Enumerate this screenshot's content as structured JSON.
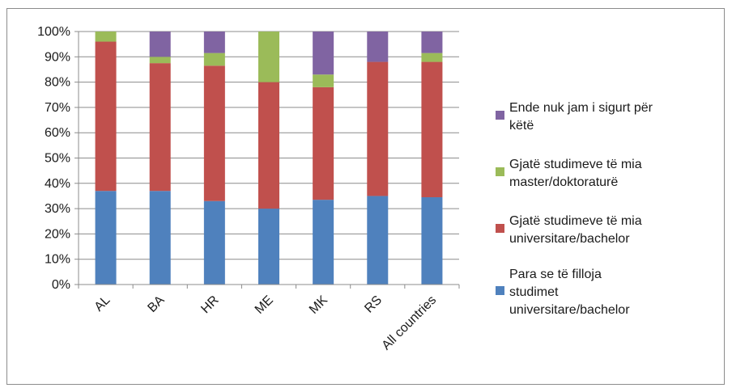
{
  "chart_data": {
    "type": "bar",
    "stacked": true,
    "percent": true,
    "categories": [
      "AL",
      "BA",
      "HR",
      "ME",
      "MK",
      "RS",
      "All countries"
    ],
    "series": [
      {
        "name": "Para se të filloja studimet universitare/bachelor",
        "color": "#4f81bd",
        "values": [
          37,
          37,
          33,
          30,
          33.5,
          35,
          34.5
        ]
      },
      {
        "name": "Gjatë studimeve të mia universitare/bachelor",
        "color": "#c0504d",
        "values": [
          59,
          50.5,
          53.5,
          50,
          44.5,
          53,
          53.5
        ]
      },
      {
        "name": "Gjatë studimeve të mia master/doktoraturë",
        "color": "#9bbb59",
        "values": [
          4,
          2.5,
          5,
          20,
          5,
          0,
          3.5
        ]
      },
      {
        "name": "Ende nuk jam i sigurt për këtë",
        "color": "#8064a2",
        "values": [
          0,
          10,
          8.5,
          0,
          17,
          12,
          8.5
        ]
      }
    ],
    "ylim": [
      0,
      100
    ],
    "yticks": [
      "0%",
      "10%",
      "20%",
      "30%",
      "40%",
      "50%",
      "60%",
      "70%",
      "80%",
      "90%",
      "100%"
    ],
    "grid": true,
    "legend_position": "right",
    "legend_order_top_to_bottom": [
      3,
      2,
      1,
      0
    ],
    "legend_lines": [
      [
        "Ende nuk jam i sigurt për",
        "këtë"
      ],
      [
        "Gjatë studimeve të mia",
        "master/doktoraturë"
      ],
      [
        "Gjatë studimeve të mia",
        "universitare/bachelor"
      ],
      [
        "Para se të filloja",
        "studimet",
        "universitare/bachelor"
      ]
    ]
  }
}
